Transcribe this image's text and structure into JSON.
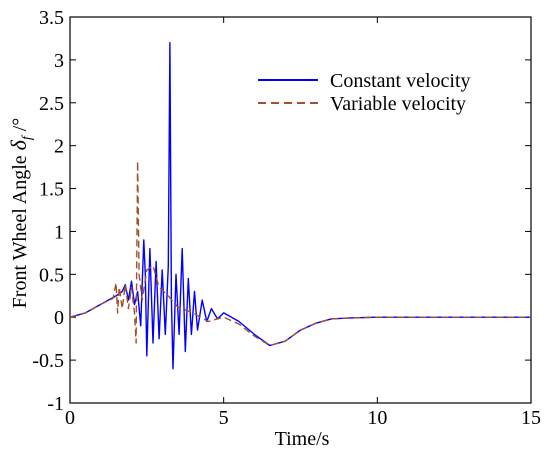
{
  "chart_data": {
    "type": "line",
    "xlabel": "Time/s",
    "ylabel": "Front Wheel Angle δf /°",
    "ylabel_main": "Front Wheel Angle ",
    "ylabel_symbol": "δ",
    "ylabel_sub": "f",
    "ylabel_unit": " /°",
    "xlim": [
      0,
      15
    ],
    "ylim": [
      -1,
      3.5
    ],
    "xticks": [
      "0",
      "5",
      "10",
      "15"
    ],
    "yticks": [
      "-1",
      "-0.5",
      "0",
      "0.5",
      "1",
      "1.5",
      "2",
      "2.5",
      "3",
      "3.5"
    ],
    "grid": false,
    "legend_position": "top-right",
    "series": [
      {
        "name": "Constant velocity",
        "color": "#0000ff",
        "style": "solid",
        "points": [
          [
            0,
            0
          ],
          [
            0.5,
            0.05
          ],
          [
            1,
            0.15
          ],
          [
            1.5,
            0.25
          ],
          [
            1.7,
            0.3
          ],
          [
            1.8,
            0.38
          ],
          [
            1.9,
            0.2
          ],
          [
            2.0,
            0.42
          ],
          [
            2.1,
            0.15
          ],
          [
            2.2,
            0.3
          ],
          [
            2.3,
            -0.1
          ],
          [
            2.4,
            0.9
          ],
          [
            2.45,
            0.5
          ],
          [
            2.5,
            -0.45
          ],
          [
            2.6,
            0.8
          ],
          [
            2.7,
            -0.3
          ],
          [
            2.8,
            0.65
          ],
          [
            2.9,
            -0.25
          ],
          [
            3.0,
            0.55
          ],
          [
            3.1,
            -0.2
          ],
          [
            3.2,
            0.6
          ],
          [
            3.25,
            3.2
          ],
          [
            3.3,
            0.2
          ],
          [
            3.35,
            -0.6
          ],
          [
            3.45,
            0.5
          ],
          [
            3.55,
            -0.2
          ],
          [
            3.65,
            0.8
          ],
          [
            3.75,
            -0.4
          ],
          [
            3.85,
            0.45
          ],
          [
            3.95,
            -0.2
          ],
          [
            4.05,
            0.3
          ],
          [
            4.15,
            -0.15
          ],
          [
            4.3,
            0.2
          ],
          [
            4.45,
            -0.05
          ],
          [
            4.6,
            0.1
          ],
          [
            4.8,
            -0.02
          ],
          [
            5.0,
            0.05
          ],
          [
            5.5,
            -0.05
          ],
          [
            6.0,
            -0.2
          ],
          [
            6.5,
            -0.33
          ],
          [
            7.0,
            -0.28
          ],
          [
            7.5,
            -0.15
          ],
          [
            8.0,
            -0.07
          ],
          [
            8.5,
            -0.02
          ],
          [
            9.0,
            -0.01
          ],
          [
            10.0,
            0
          ],
          [
            12.0,
            0
          ],
          [
            15.0,
            0
          ]
        ]
      },
      {
        "name": "Variable velocity",
        "color": "#a0522d",
        "style": "dashed",
        "points": [
          [
            0,
            0
          ],
          [
            0.5,
            0.05
          ],
          [
            1,
            0.15
          ],
          [
            1.4,
            0.22
          ],
          [
            1.5,
            0.4
          ],
          [
            1.55,
            0.05
          ],
          [
            1.6,
            0.35
          ],
          [
            1.7,
            0.1
          ],
          [
            1.8,
            0.38
          ],
          [
            1.9,
            0.1
          ],
          [
            2.0,
            0.35
          ],
          [
            2.1,
            0.05
          ],
          [
            2.15,
            -0.3
          ],
          [
            2.2,
            1.82
          ],
          [
            2.25,
            0.5
          ],
          [
            2.35,
            0.2
          ],
          [
            2.5,
            0.55
          ],
          [
            2.7,
            0.6
          ],
          [
            2.9,
            0.35
          ],
          [
            3.2,
            0.25
          ],
          [
            3.5,
            0.12
          ],
          [
            4.0,
            0.05
          ],
          [
            4.5,
            -0.05
          ],
          [
            5.0,
            0.0
          ],
          [
            5.5,
            -0.08
          ],
          [
            6.0,
            -0.22
          ],
          [
            6.5,
            -0.33
          ],
          [
            7.0,
            -0.28
          ],
          [
            7.5,
            -0.15
          ],
          [
            8.0,
            -0.07
          ],
          [
            8.5,
            -0.02
          ],
          [
            9.0,
            -0.01
          ],
          [
            10.0,
            0
          ],
          [
            12.0,
            0
          ],
          [
            15.0,
            0
          ]
        ]
      }
    ]
  }
}
